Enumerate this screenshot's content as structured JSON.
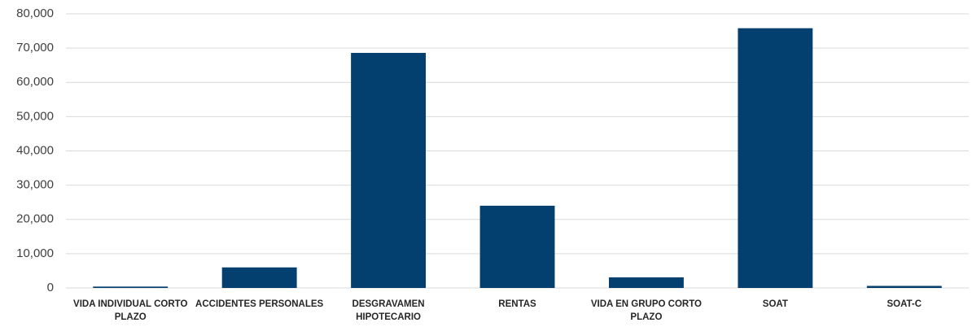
{
  "chart_data": {
    "type": "bar",
    "categories": [
      "VIDA INDIVIDUAL CORTO PLAZO",
      "ACCIDENTES PERSONALES",
      "DESGRAVAMEN HIPOTECARIO",
      "RENTAS",
      "VIDA EN GRUPO CORTO PLAZO",
      "SOAT",
      "SOAT-C"
    ],
    "values": [
      400,
      6000,
      68600,
      24000,
      3100,
      75800,
      600
    ],
    "color": "#03406f",
    "ylim": [
      0,
      80000
    ],
    "yticks": [
      0,
      {
        "value": 10000,
        "label": "10,000"
      },
      {
        "value": 20000,
        "label": "20,000"
      },
      {
        "value": 30000,
        "label": "30,000"
      },
      {
        "value": 40000,
        "label": "40,000"
      },
      {
        "value": 50000,
        "label": "50,000"
      },
      {
        "value": 60000,
        "label": "60,000"
      },
      {
        "value": 70000,
        "label": "70,000"
      },
      {
        "value": 80000,
        "label": "80,000"
      }
    ],
    "grid": true
  }
}
